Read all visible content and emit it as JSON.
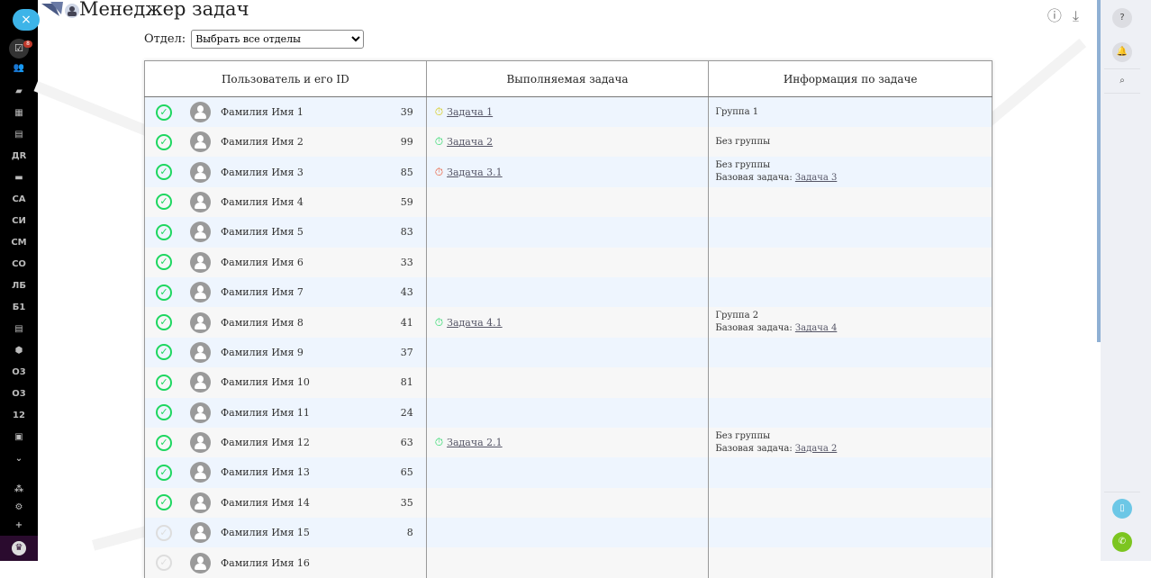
{
  "app": {
    "title": "Менеджер задач"
  },
  "sidebar": {
    "close": "×",
    "badge": "8",
    "items": [
      "ДR",
      "СА",
      "СИ",
      "СМ",
      "СО",
      "ЛБ",
      "Б1",
      "О3",
      "О3",
      "12"
    ]
  },
  "filter": {
    "label": "Отдел:",
    "value": "Выбрать все отделы"
  },
  "table": {
    "headers": [
      "Пользователь и его ID",
      "Выполняемая задача",
      "Информация по задаче"
    ],
    "rows": [
      {
        "name": "Фамилия Имя 1",
        "id": "39",
        "active": true,
        "task": "Задача 1",
        "timer": "#d4c800",
        "info": "Группа 1",
        "base": ""
      },
      {
        "name": "Фамилия Имя 2",
        "id": "99",
        "active": true,
        "task": "Задача 2",
        "timer": "#1ed760",
        "info": "Без группы",
        "base": ""
      },
      {
        "name": "Фамилия Имя 3",
        "id": "85",
        "active": true,
        "task": "Задача 3.1",
        "timer": "#e8502a",
        "info": "Без группы",
        "base": "Задача 3"
      },
      {
        "name": "Фамилия Имя 4",
        "id": "59",
        "active": true
      },
      {
        "name": "Фамилия Имя 5",
        "id": "83",
        "active": true
      },
      {
        "name": "Фамилия Имя 6",
        "id": "33",
        "active": true
      },
      {
        "name": "Фамилия Имя 7",
        "id": "43",
        "active": true
      },
      {
        "name": "Фамилия Имя 8",
        "id": "41",
        "active": true,
        "task": "Задача 4.1",
        "timer": "#1ed760",
        "info": "Группа 2",
        "base": "Задача 4"
      },
      {
        "name": "Фамилия Имя 9",
        "id": "37",
        "active": true
      },
      {
        "name": "Фамилия Имя 10",
        "id": "81",
        "active": true
      },
      {
        "name": "Фамилия Имя 11",
        "id": "24",
        "active": true
      },
      {
        "name": "Фамилия Имя 12",
        "id": "63",
        "active": true,
        "task": "Задача 2.1",
        "timer": "#1ed760",
        "info": "Без группы",
        "base": "Задача 2"
      },
      {
        "name": "Фамилия Имя 13",
        "id": "65",
        "active": true
      },
      {
        "name": "Фамилия Имя 14",
        "id": "35",
        "active": true
      },
      {
        "name": "Фамилия Имя 15",
        "id": "8",
        "active": false
      },
      {
        "name": "Фамилия Имя 16",
        "id": "",
        "active": false
      }
    ],
    "base_label": "Базовая задача:"
  },
  "colors": {
    "accent": "#3db4e8",
    "check": "#1ed760",
    "call": "#7cc520",
    "cloud": "#6cc7e6"
  }
}
